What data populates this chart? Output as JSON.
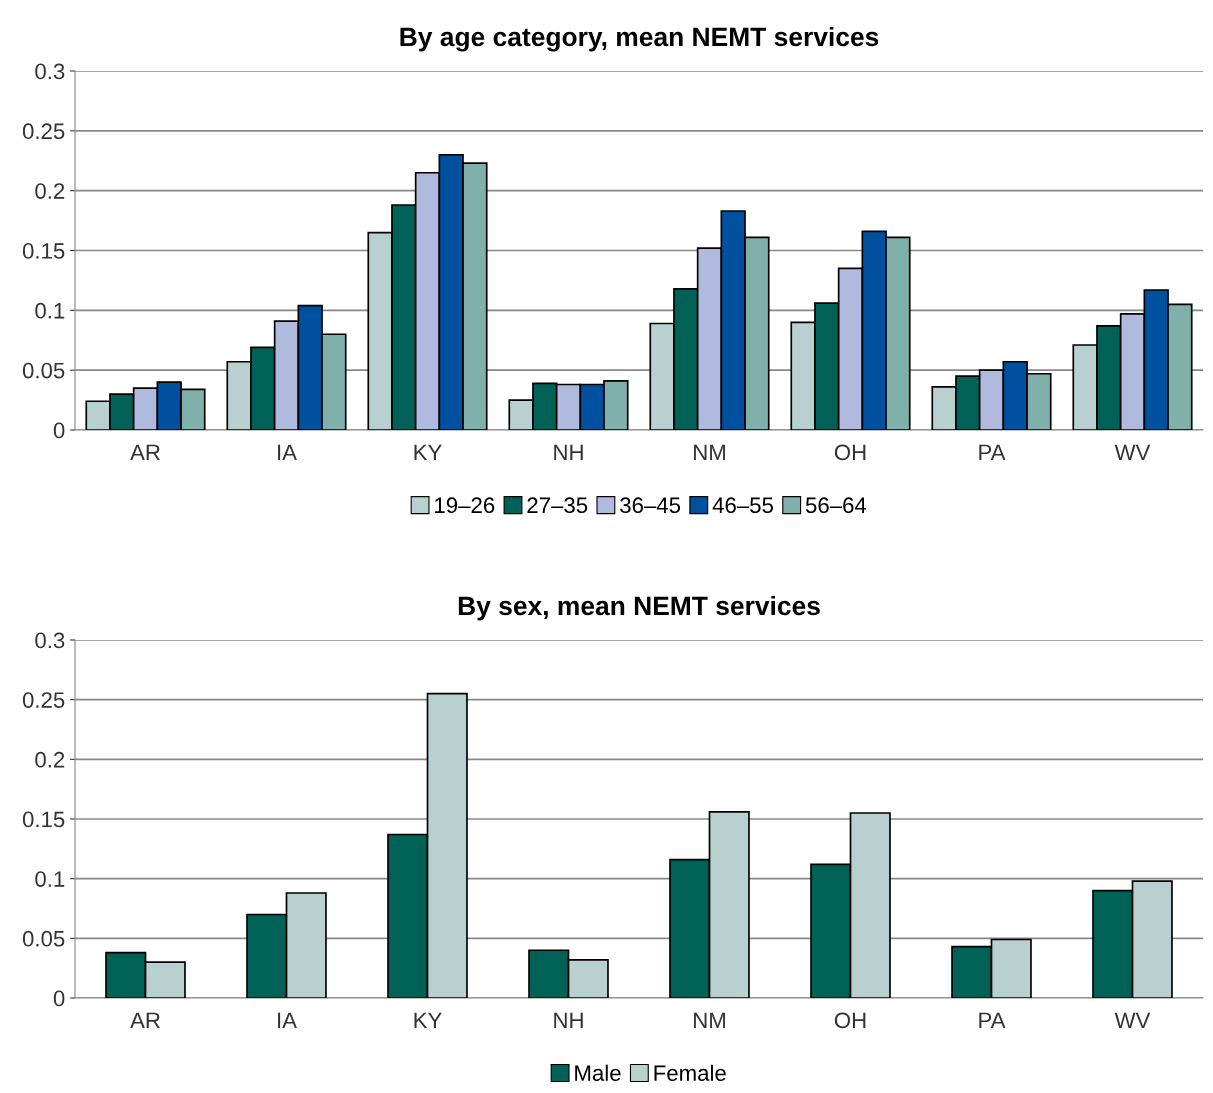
{
  "chart_data": [
    {
      "type": "bar",
      "title": "By age category, mean NEMT services",
      "categories": [
        "AR",
        "IA",
        "KY",
        "NH",
        "NM",
        "OH",
        "PA",
        "WV"
      ],
      "series": [
        {
          "name": "19–26",
          "color": "#b8d0d0",
          "values": [
            0.024,
            0.057,
            0.165,
            0.025,
            0.089,
            0.09,
            0.036,
            0.071
          ]
        },
        {
          "name": "27–35",
          "color": "#006156",
          "values": [
            0.03,
            0.069,
            0.188,
            0.039,
            0.118,
            0.106,
            0.045,
            0.087
          ]
        },
        {
          "name": "36–45",
          "color": "#b0bade",
          "values": [
            0.035,
            0.091,
            0.215,
            0.038,
            0.152,
            0.135,
            0.05,
            0.097
          ]
        },
        {
          "name": "46–55",
          "color": "#0050a0",
          "values": [
            0.04,
            0.104,
            0.23,
            0.038,
            0.183,
            0.166,
            0.057,
            0.117
          ]
        },
        {
          "name": "56–64",
          "color": "#7fb0aa",
          "values": [
            0.034,
            0.08,
            0.223,
            0.041,
            0.161,
            0.161,
            0.047,
            0.105
          ]
        }
      ],
      "ylim": [
        0,
        0.3
      ],
      "yticks": [
        0,
        0.05,
        0.1,
        0.15,
        0.2,
        0.25,
        0.3
      ],
      "grid": "y",
      "legend": "bottom"
    },
    {
      "type": "bar",
      "title": "By sex, mean NEMT services",
      "categories": [
        "AR",
        "IA",
        "KY",
        "NH",
        "NM",
        "OH",
        "PA",
        "WV"
      ],
      "series": [
        {
          "name": "Male",
          "color": "#006156",
          "values": [
            0.038,
            0.07,
            0.137,
            0.04,
            0.116,
            0.112,
            0.043,
            0.09
          ]
        },
        {
          "name": "Female",
          "color": "#b8d0d0",
          "values": [
            0.03,
            0.088,
            0.255,
            0.032,
            0.156,
            0.155,
            0.049,
            0.098
          ]
        }
      ],
      "ylim": [
        0,
        0.3
      ],
      "yticks": [
        0,
        0.05,
        0.1,
        0.15,
        0.2,
        0.25,
        0.3
      ],
      "grid": "y",
      "legend": "bottom"
    }
  ]
}
